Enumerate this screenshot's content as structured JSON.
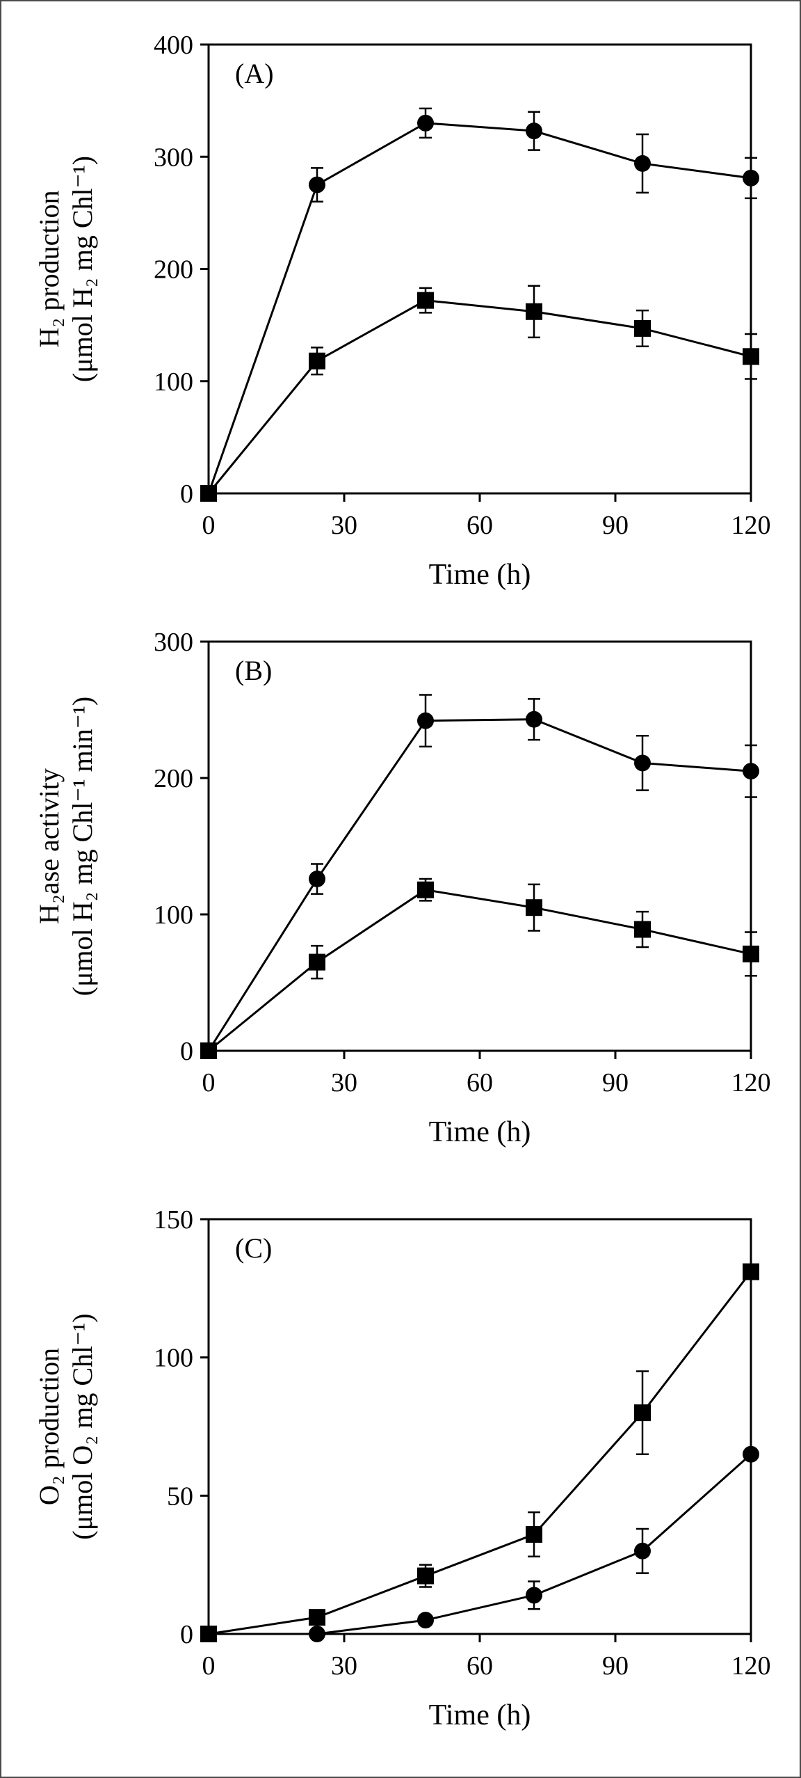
{
  "chart_data": [
    {
      "panel_label": "(A)",
      "type": "line",
      "xlabel": "Time (h)",
      "ylabel_line1": "H₂ production",
      "ylabel_line2": "(μmol H₂ mg Chl⁻¹)",
      "x": [
        0,
        24,
        48,
        72,
        96,
        120
      ],
      "xlim": [
        0,
        120
      ],
      "ylim": [
        0,
        400
      ],
      "x_ticks": [
        "0",
        "30",
        "60",
        "90",
        "120"
      ],
      "y_ticks": [
        "0",
        "100",
        "200",
        "300",
        "400"
      ],
      "series": [
        {
          "marker": "circle",
          "values": [
            0,
            275,
            330,
            323,
            294,
            281
          ],
          "errors": [
            0,
            15,
            13,
            17,
            26,
            18
          ]
        },
        {
          "marker": "square",
          "values": [
            0,
            118,
            172,
            162,
            147,
            122
          ],
          "errors": [
            0,
            12,
            11,
            23,
            16,
            20
          ]
        }
      ]
    },
    {
      "panel_label": "(B)",
      "type": "line",
      "xlabel": "Time (h)",
      "ylabel_line1": "H₂ase activity",
      "ylabel_line2": "(μmol H₂ mg Chl⁻¹ min⁻¹)",
      "x": [
        0,
        24,
        48,
        72,
        96,
        120
      ],
      "xlim": [
        0,
        120
      ],
      "ylim": [
        0,
        300
      ],
      "x_ticks": [
        "0",
        "30",
        "60",
        "90",
        "120"
      ],
      "y_ticks": [
        "0",
        "100",
        "200",
        "300"
      ],
      "series": [
        {
          "marker": "circle",
          "values": [
            0,
            126,
            242,
            243,
            211,
            205
          ],
          "errors": [
            0,
            11,
            19,
            15,
            20,
            19
          ]
        },
        {
          "marker": "square",
          "values": [
            0,
            65,
            118,
            105,
            89,
            71
          ],
          "errors": [
            0,
            12,
            8,
            17,
            13,
            16
          ]
        }
      ]
    },
    {
      "panel_label": "(C)",
      "type": "line",
      "xlabel": "Time (h)",
      "ylabel_line1": "O₂ production",
      "ylabel_line2": "(μmol O₂  mg Chl⁻¹)",
      "x": [
        0,
        24,
        48,
        72,
        96,
        120
      ],
      "xlim": [
        0,
        120
      ],
      "ylim": [
        0,
        150
      ],
      "x_ticks": [
        "0",
        "30",
        "60",
        "90",
        "120"
      ],
      "y_ticks": [
        "0",
        "50",
        "100",
        "150"
      ],
      "series": [
        {
          "marker": "circle",
          "values": [
            0,
            0,
            5,
            14,
            30,
            65
          ],
          "errors": [
            0,
            0,
            0,
            5,
            8,
            0
          ]
        },
        {
          "marker": "square",
          "values": [
            0,
            6,
            21,
            36,
            80,
            131
          ],
          "errors": [
            0,
            0,
            4,
            8,
            15,
            0
          ]
        }
      ]
    }
  ]
}
